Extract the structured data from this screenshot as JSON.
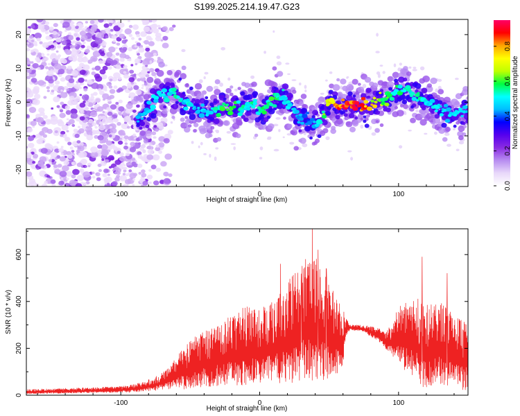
{
  "title": "S199.2025.214.19.47.G23",
  "colors": {
    "snr_line": "#ee2222",
    "background": "#ffffff",
    "axis": "#000000",
    "colormap": [
      "#ffffff",
      "#e8d8fa",
      "#b78cf0",
      "#8a2be2",
      "#5500ee",
      "#0000ff",
      "#00bfff",
      "#00ffff",
      "#00ff40",
      "#c0ff00",
      "#ffff00",
      "#ffa500",
      "#ff0000",
      "#ff0066"
    ]
  },
  "chart_data": [
    {
      "type": "heatmap",
      "title": "S199.2025.214.19.47.G23",
      "xlabel": "Height of straight line (km)",
      "ylabel": "Frequency (Hz)",
      "xlim": [
        -168,
        150
      ],
      "ylim": [
        -25,
        24.5
      ],
      "xticks": [
        "-100",
        "0",
        "100"
      ],
      "yticks": [
        "20",
        "10",
        "0",
        "-10",
        "-20"
      ],
      "colorbar": {
        "label": "Normalized spectral amplitude",
        "range": [
          0,
          0.95
        ],
        "ticks": [
          "0.0",
          "0.2",
          "0.4",
          "0.6",
          "0.8"
        ]
      },
      "noise_region_x": [
        -168,
        -60
      ],
      "ridge": {
        "x": [
          -85,
          -80,
          -75,
          -70,
          -65,
          -60,
          -55,
          -50,
          -45,
          -40,
          -35,
          -30,
          -25,
          -20,
          -15,
          -10,
          -5,
          0,
          5,
          10,
          15,
          20,
          25,
          30,
          35,
          40,
          45,
          50,
          55,
          60,
          65,
          70,
          75,
          80,
          85,
          90,
          95,
          100,
          105,
          110,
          115,
          120,
          125,
          130,
          135,
          140,
          145,
          150
        ],
        "frequency_hz": [
          -5,
          -2,
          1,
          3,
          2,
          3,
          0,
          -1,
          -2,
          -2,
          -3,
          -2,
          -1,
          -1,
          -2,
          -1,
          0,
          -3,
          -2,
          1,
          2,
          0,
          -3,
          -5,
          -6,
          -7,
          -4,
          0,
          -1,
          -1,
          -1,
          -1,
          -1,
          -1,
          0,
          1,
          2,
          3,
          4,
          2,
          1,
          0,
          -1,
          -2,
          -3,
          -4,
          -3,
          -2
        ],
        "amplitude": [
          0.18,
          0.22,
          0.28,
          0.25,
          0.3,
          0.32,
          0.22,
          0.28,
          0.2,
          0.25,
          0.3,
          0.33,
          0.38,
          0.42,
          0.35,
          0.3,
          0.35,
          0.3,
          0.38,
          0.45,
          0.3,
          0.28,
          0.25,
          0.18,
          0.15,
          0.2,
          0.35,
          0.55,
          0.75,
          0.9,
          0.9,
          0.92,
          0.85,
          0.62,
          0.55,
          0.45,
          0.4,
          0.35,
          0.32,
          0.28,
          0.35,
          0.3,
          0.28,
          0.25,
          0.22,
          0.3,
          0.25,
          0.2
        ]
      }
    },
    {
      "type": "line",
      "xlabel": "Height of straight line (km)",
      "ylabel": "SNR (10 * v/v)",
      "xlim": [
        -168,
        150
      ],
      "ylim": [
        0,
        710
      ],
      "xticks": [
        "-100",
        "0",
        "100"
      ],
      "yticks": [
        "0",
        "200",
        "400",
        "600"
      ],
      "envelope": {
        "x": [
          -168,
          -140,
          -110,
          -95,
          -85,
          -75,
          -65,
          -58,
          -50,
          -45,
          -40,
          -30,
          -20,
          -10,
          0,
          10,
          20,
          30,
          40,
          50,
          55,
          60,
          62,
          65,
          75,
          85,
          90,
          95,
          100,
          105,
          110,
          115,
          120,
          125,
          130,
          135,
          140,
          150
        ],
        "snr_low": [
          5,
          8,
          10,
          12,
          15,
          20,
          25,
          25,
          25,
          30,
          35,
          40,
          40,
          40,
          45,
          50,
          50,
          55,
          60,
          70,
          80,
          100,
          250,
          280,
          270,
          230,
          200,
          170,
          130,
          100,
          70,
          40,
          30,
          40,
          50,
          40,
          30,
          20
        ],
        "snr_high": [
          25,
          30,
          35,
          40,
          55,
          80,
          120,
          180,
          230,
          260,
          270,
          300,
          350,
          380,
          380,
          400,
          480,
          580,
          600,
          480,
          420,
          380,
          330,
          300,
          300,
          290,
          270,
          300,
          380,
          400,
          420,
          430,
          420,
          380,
          400,
          380,
          350,
          300
        ],
        "peaks": [
          {
            "x": 38,
            "snr": 710
          },
          {
            "x": 42,
            "snr": 620
          },
          {
            "x": 33,
            "snr": 580
          },
          {
            "x": 15,
            "snr": 560
          },
          {
            "x": 117,
            "snr": 590
          },
          {
            "x": 135,
            "snr": 520
          },
          {
            "x": 30,
            "snr": 480
          },
          {
            "x": 48,
            "snr": 540
          }
        ]
      }
    }
  ]
}
